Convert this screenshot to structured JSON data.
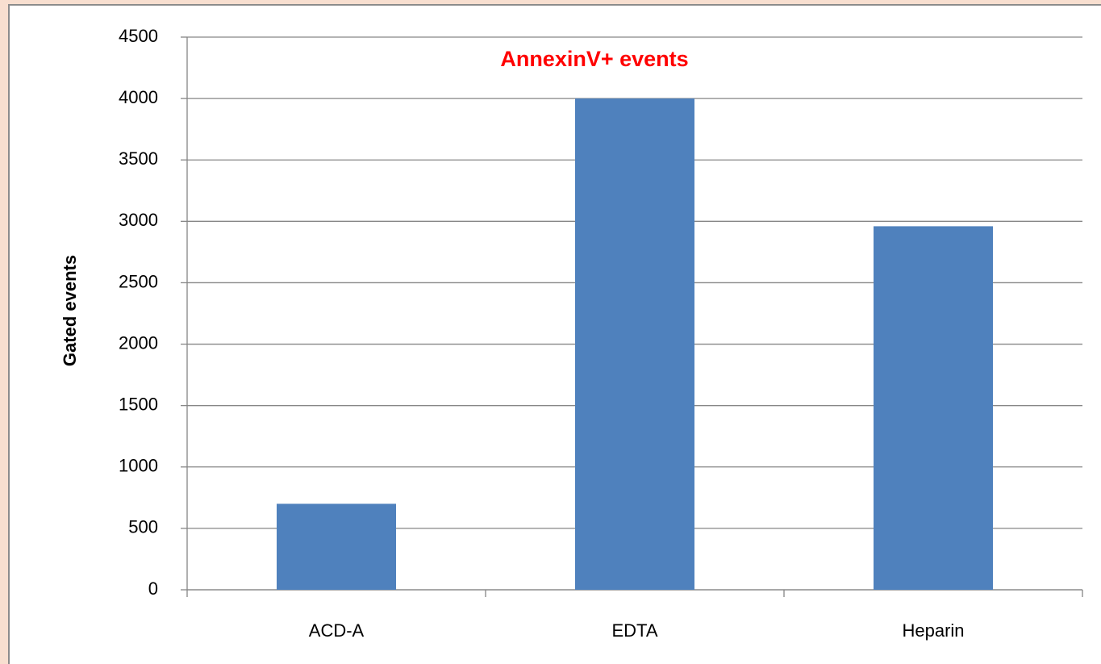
{
  "chart_data": {
    "type": "bar",
    "title": "AnnexinV+ events",
    "title_color": "#ff0000",
    "y_label": "Gated events",
    "categories": [
      "ACD-A",
      "EDTA",
      "Heparin"
    ],
    "values": [
      700,
      4000,
      2960
    ],
    "color": "#4f81bd",
    "ylim": [
      0,
      4500
    ],
    "yticks": [
      0,
      500,
      1000,
      1500,
      2000,
      2500,
      3000,
      3500,
      4000,
      4500
    ],
    "grid": true
  }
}
